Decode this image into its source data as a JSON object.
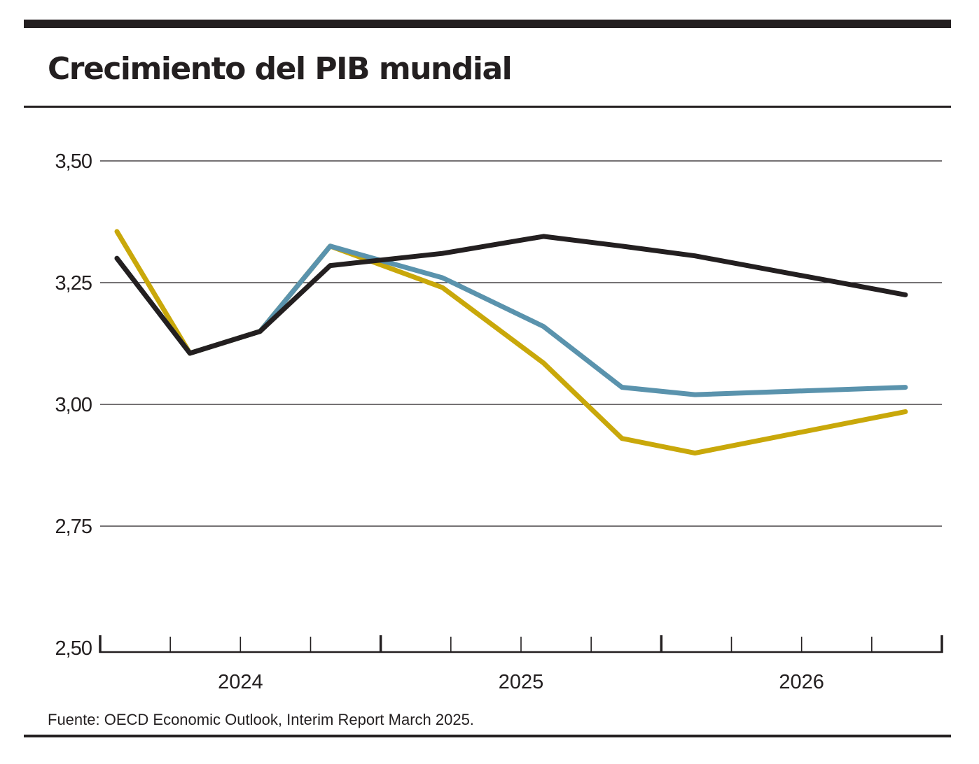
{
  "title": "Crecimiento del PIB mundial",
  "source": "Fuente: OECD Economic Outlook, Interim Report March 2025.",
  "chart_data": {
    "type": "line",
    "title": "Crecimiento del PIB mundial",
    "xlabel": "",
    "ylabel": "",
    "ylim": [
      2.5,
      3.5
    ],
    "yticks": [
      2.5,
      2.75,
      3.0,
      3.25,
      3.5
    ],
    "ytick_labels": [
      "2,50",
      "2,75",
      "3,00",
      "3,25",
      "3,50"
    ],
    "xlim": [
      2023.5,
      2026.5
    ],
    "x_major_ticks": [
      2023.5,
      2024.5,
      2025.5,
      2026.5
    ],
    "x_minor_ticks": [
      2023.75,
      2024.0,
      2024.25,
      2024.75,
      2025.0,
      2025.25,
      2025.75,
      2026.0,
      2026.25
    ],
    "x_labels": [
      {
        "x": 2024.0,
        "label": "2024"
      },
      {
        "x": 2025.0,
        "label": "2025"
      },
      {
        "x": 2026.0,
        "label": "2026"
      }
    ],
    "grid": true,
    "series": [
      {
        "color": "#c9a80a",
        "x": [
          2023.56,
          2023.82,
          2024.07,
          2024.32,
          2024.72,
          2025.08,
          2025.36,
          2025.62,
          2026.37
        ],
        "values": [
          3.355,
          3.105,
          3.15,
          3.325,
          3.24,
          3.085,
          2.93,
          2.9,
          2.985
        ]
      },
      {
        "color": "#5a93ad",
        "x": [
          2023.56,
          2023.82,
          2024.07,
          2024.32,
          2024.72,
          2025.08,
          2025.36,
          2025.62,
          2026.37
        ],
        "values": [
          3.3,
          3.105,
          3.15,
          3.325,
          3.26,
          3.16,
          3.035,
          3.02,
          3.035
        ]
      },
      {
        "color": "#231f20",
        "x": [
          2023.56,
          2023.82,
          2024.07,
          2024.32,
          2024.72,
          2025.08,
          2025.36,
          2025.62,
          2026.37
        ],
        "values": [
          3.3,
          3.105,
          3.15,
          3.285,
          3.31,
          3.345,
          3.325,
          3.305,
          3.225
        ]
      }
    ]
  }
}
